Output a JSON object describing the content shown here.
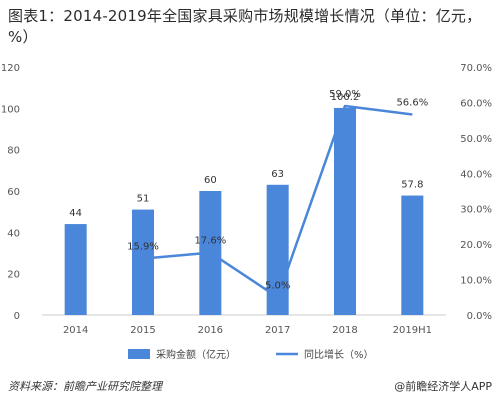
{
  "title": "图表1：2014-2019年全国家具采购市场规模增长情况（单位：亿元，%）",
  "source_text": "资料来源：前瞻产业研究院整理",
  "brand_text": "@前瞻经济学人APP",
  "colors": {
    "bar": "#4a86d9",
    "line": "#4a86d9",
    "axis": "#cccccc",
    "text": "#555555"
  },
  "chart_data": {
    "type": "bar",
    "title": "图表1：2014-2019年全国家具采购市场规模增长情况（单位：亿元，%）",
    "categories": [
      "2014",
      "2015",
      "2016",
      "2017",
      "2018",
      "2019H1"
    ],
    "series": [
      {
        "name": "采购金额（亿元）",
        "type": "bar",
        "axis": "left",
        "values": [
          44,
          51,
          60,
          63,
          100.2,
          57.8
        ],
        "labels": [
          "44",
          "51",
          "60",
          "63",
          "100.2",
          "57.8"
        ]
      },
      {
        "name": "同比增长（%）",
        "type": "line",
        "axis": "right",
        "values": [
          null,
          15.9,
          17.6,
          5.0,
          59.0,
          56.6
        ],
        "labels": [
          "",
          "15.9%",
          "17.6%",
          "5.0%",
          "59.0%",
          "56.6%"
        ]
      }
    ],
    "left_axis": {
      "ylim": [
        0,
        120
      ],
      "ticks": [
        "0",
        "20",
        "40",
        "60",
        "80",
        "100",
        "120"
      ]
    },
    "right_axis": {
      "ylim": [
        0,
        70
      ],
      "ticks": [
        "0.0%",
        "10.0%",
        "20.0%",
        "30.0%",
        "40.0%",
        "50.0%",
        "60.0%",
        "70.0%"
      ]
    },
    "legend_position": "bottom",
    "grid": false
  }
}
